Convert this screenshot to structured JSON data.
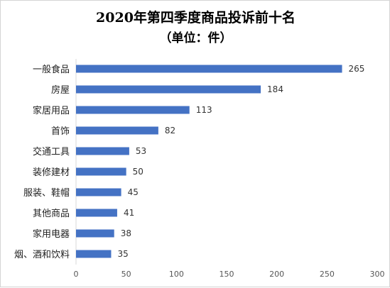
{
  "chart_data": {
    "type": "bar",
    "orientation": "horizontal",
    "title": "2020年第四季度商品投诉前十名",
    "subtitle": "（单位：件）",
    "categories": [
      "一般食品",
      "房屋",
      "家居用品",
      "首饰",
      "交通工具",
      "装修建材",
      "服装、鞋帽",
      "其他商品",
      "家用电器",
      "烟、酒和饮料"
    ],
    "values": [
      265,
      184,
      113,
      82,
      53,
      50,
      45,
      41,
      38,
      35
    ],
    "x_ticks": [
      "0",
      "50",
      "100",
      "150",
      "200",
      "250",
      "300"
    ],
    "xlim": [
      0,
      300
    ],
    "grid": false,
    "legend": "none",
    "bar_color": "#4472C4"
  }
}
